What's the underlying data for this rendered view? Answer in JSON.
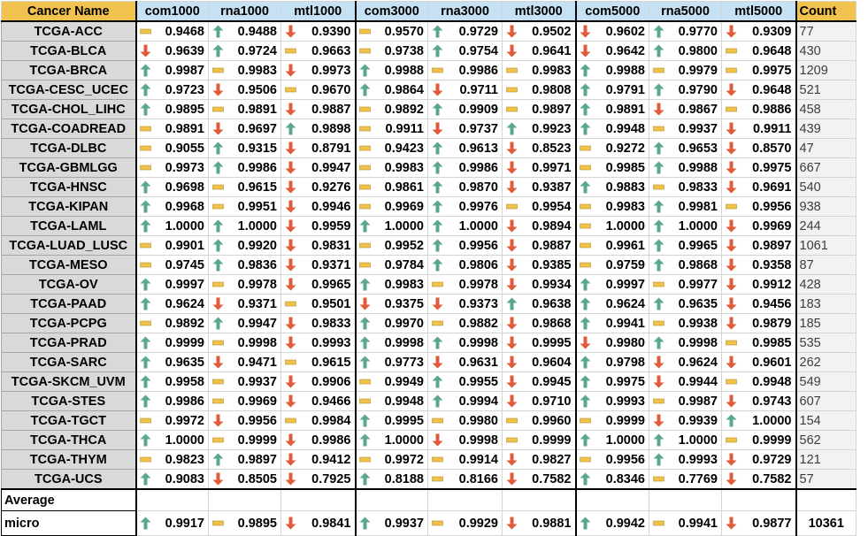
{
  "headers": {
    "name": "Cancer Name",
    "cols": [
      "com1000",
      "rna1000",
      "mtl1000",
      "com3000",
      "rna3000",
      "mtl3000",
      "com5000",
      "rna5000",
      "mtl5000"
    ],
    "count": "Count"
  },
  "colors": {
    "up": "#5aa88a",
    "down": "#e05b3a",
    "flat": "#f0c24a"
  },
  "rows": [
    {
      "name": "TCGA-ACC",
      "cells": [
        [
          "flat",
          "0.9468"
        ],
        [
          "up",
          "0.9488"
        ],
        [
          "down",
          "0.9390"
        ],
        [
          "flat",
          "0.9570"
        ],
        [
          "up",
          "0.9729"
        ],
        [
          "down",
          "0.9502"
        ],
        [
          "down",
          "0.9602"
        ],
        [
          "up",
          "0.9770"
        ],
        [
          "down",
          "0.9309"
        ]
      ],
      "count": "77"
    },
    {
      "name": "TCGA-BLCA",
      "cells": [
        [
          "down",
          "0.9639"
        ],
        [
          "up",
          "0.9724"
        ],
        [
          "flat",
          "0.9663"
        ],
        [
          "flat",
          "0.9738"
        ],
        [
          "up",
          "0.9754"
        ],
        [
          "down",
          "0.9641"
        ],
        [
          "down",
          "0.9642"
        ],
        [
          "up",
          "0.9800"
        ],
        [
          "flat",
          "0.9648"
        ]
      ],
      "count": "430"
    },
    {
      "name": "TCGA-BRCA",
      "cells": [
        [
          "up",
          "0.9987"
        ],
        [
          "flat",
          "0.9983"
        ],
        [
          "down",
          "0.9973"
        ],
        [
          "up",
          "0.9988"
        ],
        [
          "flat",
          "0.9986"
        ],
        [
          "flat",
          "0.9983"
        ],
        [
          "up",
          "0.9988"
        ],
        [
          "flat",
          "0.9979"
        ],
        [
          "flat",
          "0.9975"
        ]
      ],
      "count": "1209"
    },
    {
      "name": "TCGA-CESC_UCEC",
      "cells": [
        [
          "up",
          "0.9723"
        ],
        [
          "down",
          "0.9506"
        ],
        [
          "flat",
          "0.9670"
        ],
        [
          "up",
          "0.9864"
        ],
        [
          "down",
          "0.9711"
        ],
        [
          "flat",
          "0.9808"
        ],
        [
          "up",
          "0.9791"
        ],
        [
          "up",
          "0.9790"
        ],
        [
          "down",
          "0.9648"
        ]
      ],
      "count": "521"
    },
    {
      "name": "TCGA-CHOL_LIHC",
      "cells": [
        [
          "up",
          "0.9895"
        ],
        [
          "flat",
          "0.9891"
        ],
        [
          "down",
          "0.9887"
        ],
        [
          "flat",
          "0.9892"
        ],
        [
          "up",
          "0.9909"
        ],
        [
          "flat",
          "0.9897"
        ],
        [
          "up",
          "0.9891"
        ],
        [
          "down",
          "0.9867"
        ],
        [
          "flat",
          "0.9886"
        ]
      ],
      "count": "458"
    },
    {
      "name": "TCGA-COADREAD",
      "cells": [
        [
          "flat",
          "0.9891"
        ],
        [
          "down",
          "0.9697"
        ],
        [
          "up",
          "0.9898"
        ],
        [
          "flat",
          "0.9911"
        ],
        [
          "down",
          "0.9737"
        ],
        [
          "up",
          "0.9923"
        ],
        [
          "up",
          "0.9948"
        ],
        [
          "flat",
          "0.9937"
        ],
        [
          "down",
          "0.9911"
        ]
      ],
      "count": "439"
    },
    {
      "name": "TCGA-DLBC",
      "cells": [
        [
          "flat",
          "0.9055"
        ],
        [
          "up",
          "0.9315"
        ],
        [
          "down",
          "0.8791"
        ],
        [
          "flat",
          "0.9423"
        ],
        [
          "up",
          "0.9613"
        ],
        [
          "down",
          "0.8523"
        ],
        [
          "flat",
          "0.9272"
        ],
        [
          "up",
          "0.9653"
        ],
        [
          "down",
          "0.8570"
        ]
      ],
      "count": "47"
    },
    {
      "name": "TCGA-GBMLGG",
      "cells": [
        [
          "flat",
          "0.9973"
        ],
        [
          "up",
          "0.9986"
        ],
        [
          "down",
          "0.9947"
        ],
        [
          "flat",
          "0.9983"
        ],
        [
          "up",
          "0.9986"
        ],
        [
          "down",
          "0.9971"
        ],
        [
          "flat",
          "0.9985"
        ],
        [
          "up",
          "0.9988"
        ],
        [
          "down",
          "0.9975"
        ]
      ],
      "count": "667"
    },
    {
      "name": "TCGA-HNSC",
      "cells": [
        [
          "up",
          "0.9698"
        ],
        [
          "flat",
          "0.9615"
        ],
        [
          "down",
          "0.9276"
        ],
        [
          "flat",
          "0.9861"
        ],
        [
          "up",
          "0.9870"
        ],
        [
          "down",
          "0.9387"
        ],
        [
          "up",
          "0.9883"
        ],
        [
          "flat",
          "0.9833"
        ],
        [
          "down",
          "0.9691"
        ]
      ],
      "count": "540"
    },
    {
      "name": "TCGA-KIPAN",
      "cells": [
        [
          "up",
          "0.9968"
        ],
        [
          "flat",
          "0.9951"
        ],
        [
          "down",
          "0.9946"
        ],
        [
          "flat",
          "0.9969"
        ],
        [
          "up",
          "0.9976"
        ],
        [
          "flat",
          "0.9954"
        ],
        [
          "flat",
          "0.9983"
        ],
        [
          "up",
          "0.9981"
        ],
        [
          "flat",
          "0.9956"
        ]
      ],
      "count": "938"
    },
    {
      "name": "TCGA-LAML",
      "cells": [
        [
          "up",
          "1.0000"
        ],
        [
          "up",
          "1.0000"
        ],
        [
          "down",
          "0.9959"
        ],
        [
          "up",
          "1.0000"
        ],
        [
          "up",
          "1.0000"
        ],
        [
          "down",
          "0.9894"
        ],
        [
          "flat",
          "1.0000"
        ],
        [
          "up",
          "1.0000"
        ],
        [
          "down",
          "0.9969"
        ]
      ],
      "count": "244"
    },
    {
      "name": "TCGA-LUAD_LUSC",
      "cells": [
        [
          "flat",
          "0.9901"
        ],
        [
          "up",
          "0.9920"
        ],
        [
          "down",
          "0.9831"
        ],
        [
          "flat",
          "0.9952"
        ],
        [
          "up",
          "0.9956"
        ],
        [
          "down",
          "0.9887"
        ],
        [
          "flat",
          "0.9961"
        ],
        [
          "up",
          "0.9965"
        ],
        [
          "down",
          "0.9897"
        ]
      ],
      "count": "1061"
    },
    {
      "name": "TCGA-MESO",
      "cells": [
        [
          "flat",
          "0.9745"
        ],
        [
          "up",
          "0.9836"
        ],
        [
          "down",
          "0.9371"
        ],
        [
          "flat",
          "0.9784"
        ],
        [
          "up",
          "0.9806"
        ],
        [
          "down",
          "0.9385"
        ],
        [
          "flat",
          "0.9759"
        ],
        [
          "up",
          "0.9868"
        ],
        [
          "down",
          "0.9358"
        ]
      ],
      "count": "87"
    },
    {
      "name": "TCGA-OV",
      "cells": [
        [
          "up",
          "0.9997"
        ],
        [
          "flat",
          "0.9978"
        ],
        [
          "down",
          "0.9965"
        ],
        [
          "up",
          "0.9983"
        ],
        [
          "flat",
          "0.9978"
        ],
        [
          "down",
          "0.9934"
        ],
        [
          "up",
          "0.9997"
        ],
        [
          "flat",
          "0.9977"
        ],
        [
          "down",
          "0.9912"
        ]
      ],
      "count": "428"
    },
    {
      "name": "TCGA-PAAD",
      "cells": [
        [
          "up",
          "0.9624"
        ],
        [
          "down",
          "0.9371"
        ],
        [
          "flat",
          "0.9501"
        ],
        [
          "down",
          "0.9375"
        ],
        [
          "down",
          "0.9373"
        ],
        [
          "up",
          "0.9638"
        ],
        [
          "up",
          "0.9624"
        ],
        [
          "up",
          "0.9635"
        ],
        [
          "down",
          "0.9456"
        ]
      ],
      "count": "183"
    },
    {
      "name": "TCGA-PCPG",
      "cells": [
        [
          "flat",
          "0.9892"
        ],
        [
          "up",
          "0.9947"
        ],
        [
          "down",
          "0.9833"
        ],
        [
          "up",
          "0.9970"
        ],
        [
          "flat",
          "0.9882"
        ],
        [
          "down",
          "0.9868"
        ],
        [
          "up",
          "0.9941"
        ],
        [
          "flat",
          "0.9938"
        ],
        [
          "down",
          "0.9879"
        ]
      ],
      "count": "185"
    },
    {
      "name": "TCGA-PRAD",
      "cells": [
        [
          "up",
          "0.9999"
        ],
        [
          "flat",
          "0.9998"
        ],
        [
          "down",
          "0.9993"
        ],
        [
          "up",
          "0.9998"
        ],
        [
          "up",
          "0.9998"
        ],
        [
          "down",
          "0.9995"
        ],
        [
          "down",
          "0.9980"
        ],
        [
          "up",
          "0.9998"
        ],
        [
          "flat",
          "0.9985"
        ]
      ],
      "count": "535"
    },
    {
      "name": "TCGA-SARC",
      "cells": [
        [
          "up",
          "0.9635"
        ],
        [
          "down",
          "0.9471"
        ],
        [
          "flat",
          "0.9615"
        ],
        [
          "up",
          "0.9773"
        ],
        [
          "down",
          "0.9631"
        ],
        [
          "down",
          "0.9604"
        ],
        [
          "up",
          "0.9798"
        ],
        [
          "down",
          "0.9624"
        ],
        [
          "down",
          "0.9601"
        ]
      ],
      "count": "262"
    },
    {
      "name": "TCGA-SKCM_UVM",
      "cells": [
        [
          "up",
          "0.9958"
        ],
        [
          "flat",
          "0.9937"
        ],
        [
          "down",
          "0.9906"
        ],
        [
          "flat",
          "0.9949"
        ],
        [
          "up",
          "0.9955"
        ],
        [
          "down",
          "0.9945"
        ],
        [
          "up",
          "0.9975"
        ],
        [
          "down",
          "0.9944"
        ],
        [
          "flat",
          "0.9948"
        ]
      ],
      "count": "549"
    },
    {
      "name": "TCGA-STES",
      "cells": [
        [
          "up",
          "0.9986"
        ],
        [
          "flat",
          "0.9969"
        ],
        [
          "down",
          "0.9466"
        ],
        [
          "flat",
          "0.9948"
        ],
        [
          "up",
          "0.9994"
        ],
        [
          "down",
          "0.9710"
        ],
        [
          "up",
          "0.9993"
        ],
        [
          "flat",
          "0.9987"
        ],
        [
          "down",
          "0.9743"
        ]
      ],
      "count": "607"
    },
    {
      "name": "TCGA-TGCT",
      "cells": [
        [
          "flat",
          "0.9972"
        ],
        [
          "down",
          "0.9956"
        ],
        [
          "flat",
          "0.9984"
        ],
        [
          "up",
          "0.9995"
        ],
        [
          "flat",
          "0.9980"
        ],
        [
          "flat",
          "0.9960"
        ],
        [
          "flat",
          "0.9999"
        ],
        [
          "down",
          "0.9939"
        ],
        [
          "up",
          "1.0000"
        ]
      ],
      "count": "154"
    },
    {
      "name": "TCGA-THCA",
      "cells": [
        [
          "up",
          "1.0000"
        ],
        [
          "flat",
          "0.9999"
        ],
        [
          "down",
          "0.9986"
        ],
        [
          "up",
          "1.0000"
        ],
        [
          "down",
          "0.9998"
        ],
        [
          "flat",
          "0.9999"
        ],
        [
          "up",
          "1.0000"
        ],
        [
          "up",
          "1.0000"
        ],
        [
          "flat",
          "0.9999"
        ]
      ],
      "count": "562"
    },
    {
      "name": "TCGA-THYM",
      "cells": [
        [
          "flat",
          "0.9823"
        ],
        [
          "up",
          "0.9897"
        ],
        [
          "down",
          "0.9412"
        ],
        [
          "flat",
          "0.9972"
        ],
        [
          "flat",
          "0.9914"
        ],
        [
          "down",
          "0.9827"
        ],
        [
          "flat",
          "0.9956"
        ],
        [
          "up",
          "0.9993"
        ],
        [
          "down",
          "0.9729"
        ]
      ],
      "count": "121"
    },
    {
      "name": "TCGA-UCS",
      "cells": [
        [
          "up",
          "0.9083"
        ],
        [
          "down",
          "0.8505"
        ],
        [
          "down",
          "0.7925"
        ],
        [
          "up",
          "0.8188"
        ],
        [
          "flat",
          "0.8166"
        ],
        [
          "down",
          "0.7582"
        ],
        [
          "up",
          "0.8346"
        ],
        [
          "flat",
          "0.7769"
        ],
        [
          "down",
          "0.7582"
        ]
      ],
      "count": "57"
    }
  ],
  "average_label": "Average",
  "micro": {
    "label": "micro",
    "cells": [
      [
        "up",
        "0.9917"
      ],
      [
        "flat",
        "0.9895"
      ],
      [
        "down",
        "0.9841"
      ],
      [
        "up",
        "0.9937"
      ],
      [
        "flat",
        "0.9929"
      ],
      [
        "down",
        "0.9881"
      ],
      [
        "up",
        "0.9942"
      ],
      [
        "flat",
        "0.9941"
      ],
      [
        "down",
        "0.9877"
      ]
    ],
    "count": "10361"
  }
}
